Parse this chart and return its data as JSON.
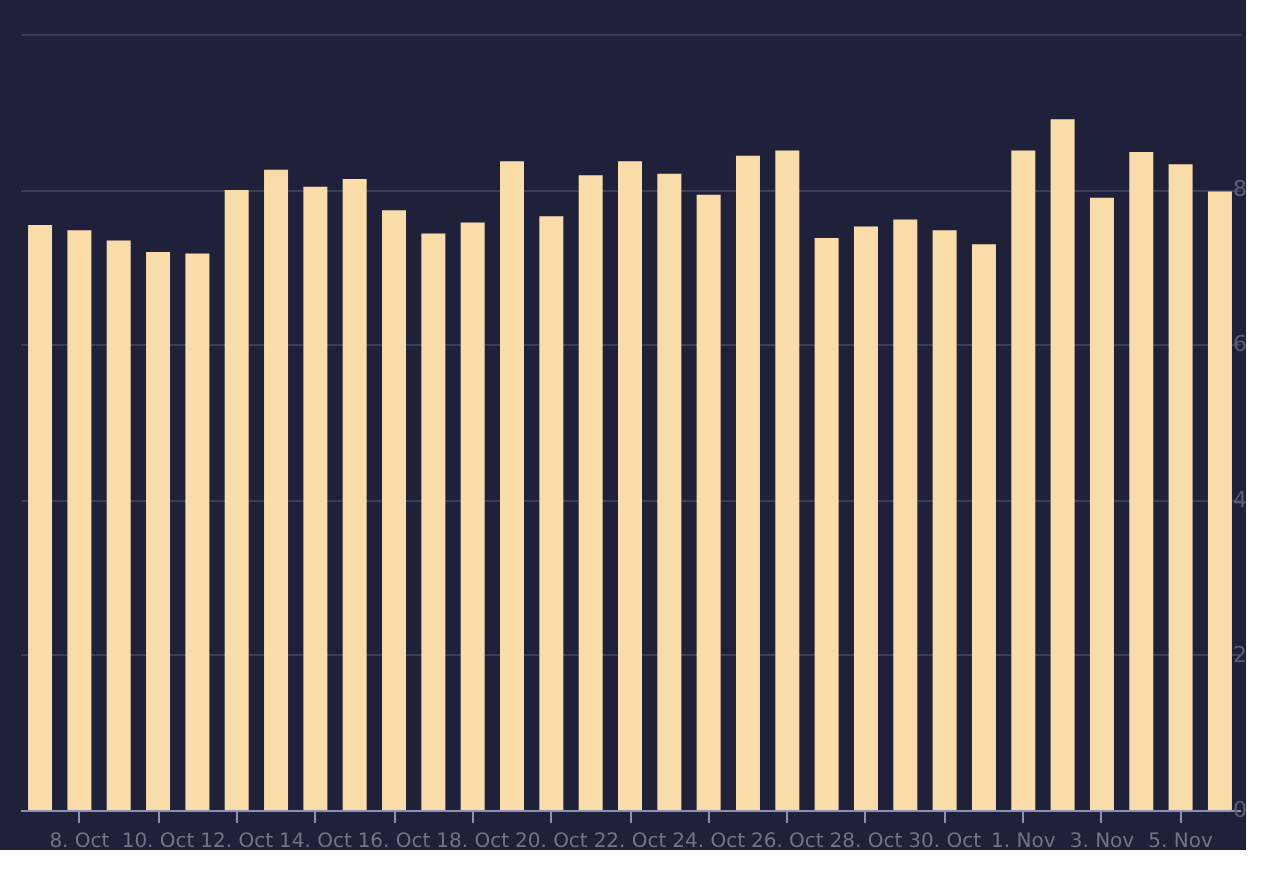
{
  "chart_data": {
    "type": "bar",
    "categories": [
      null,
      "8. Oct",
      null,
      "10. Oct",
      null,
      "12. Oct",
      null,
      "14. Oct",
      null,
      "16. Oct",
      null,
      "18. Oct",
      null,
      "20. Oct",
      null,
      "22. Oct",
      null,
      "24. Oct",
      null,
      "26. Oct",
      null,
      "28. Oct",
      null,
      "30. Oct",
      null,
      "1. Nov",
      null,
      "3. Nov",
      null,
      "5. Nov",
      null
    ],
    "values": [
      7.54,
      7.47,
      7.34,
      7.19,
      7.17,
      7.99,
      8.25,
      8.03,
      8.13,
      7.73,
      7.43,
      7.57,
      8.36,
      7.65,
      8.18,
      8.36,
      8.2,
      7.93,
      8.43,
      8.5,
      7.37,
      7.52,
      7.61,
      7.47,
      7.29,
      8.5,
      8.9,
      7.89,
      8.48,
      8.32,
      7.97
    ],
    "color": "#fadca8",
    "ylim": [
      0,
      10
    ],
    "yticks": [
      0,
      2,
      4,
      6,
      8,
      {
        "value": 10,
        "label": null
      }
    ],
    "grid": "y"
  }
}
